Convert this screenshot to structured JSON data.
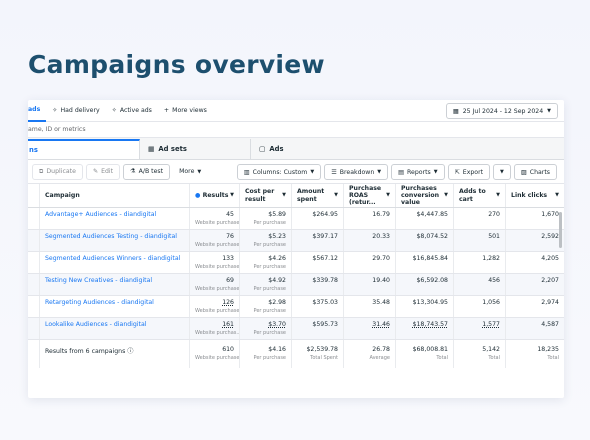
{
  "page": {
    "title": "Campaigns overview"
  },
  "filters": {
    "chips": [
      {
        "label": "ads",
        "active": true
      },
      {
        "label": "Had delivery",
        "active": false
      },
      {
        "label": "Active ads",
        "active": false
      },
      {
        "label": "More views",
        "active": false
      }
    ],
    "date_range": "25 Jul 2024 - 12 Sep 2024"
  },
  "search": {
    "placeholder": "ame, ID or metrics"
  },
  "tabs": [
    {
      "label": "ns"
    },
    {
      "label": "Ad sets"
    },
    {
      "label": "Ads"
    }
  ],
  "toolbar": {
    "duplicate": "Duplicate",
    "edit": "Edit",
    "ab_test": "A/B test",
    "more": "More",
    "columns": "Columns: Custom",
    "breakdown": "Breakdown",
    "reports": "Reports",
    "export": "Export",
    "charts": "Charts"
  },
  "table": {
    "headers": {
      "campaign": "Campaign",
      "results": "Results",
      "cost_per_result": "Cost per result",
      "amount_spent": "Amount spent",
      "roas": "Purchase ROAS (retur...",
      "conv_value": "Purchases conversion value",
      "adds_to_cart": "Adds to cart",
      "link_clicks": "Link clicks"
    },
    "rows": [
      {
        "campaign": "Advantage+ Audiences - diandigital",
        "results": "45",
        "results_sub": "Website purchases",
        "cpr": "$5.89",
        "cpr_sub": "Per purchase",
        "spent": "$264.95",
        "roas": "16.79",
        "conv": "$4,447.85",
        "atc": "270",
        "clicks": "1,670"
      },
      {
        "campaign": "Segmented Audiences Testing - diandigital",
        "results": "76",
        "results_sub": "Website purchases",
        "cpr": "$5.23",
        "cpr_sub": "Per purchase",
        "spent": "$397.17",
        "roas": "20.33",
        "conv": "$8,074.52",
        "atc": "501",
        "clicks": "2,592"
      },
      {
        "campaign": "Segmented Audiences Winners - diandigital",
        "results": "133",
        "results_sub": "Website purchases",
        "cpr": "$4.26",
        "cpr_sub": "Per purchase",
        "spent": "$567.12",
        "roas": "29.70",
        "conv": "$16,845.84",
        "atc": "1,282",
        "clicks": "4,205"
      },
      {
        "campaign": "Testing New Creatives - diandigital",
        "results": "69",
        "results_sub": "Website purchases",
        "cpr": "$4.92",
        "cpr_sub": "Per purchase",
        "spent": "$339.78",
        "roas": "19.40",
        "conv": "$6,592.08",
        "atc": "456",
        "clicks": "2,207"
      },
      {
        "campaign": "Retargeting Audiences - diandigital",
        "results": "126",
        "results_sub": "Website purchases",
        "cpr": "$2.98",
        "cpr_sub": "Per purchase",
        "spent": "$375.03",
        "roas": "35.48",
        "conv": "$13,304.95",
        "atc": "1,056",
        "clicks": "2,974"
      },
      {
        "campaign": "Lookalike Audiences - diandigital",
        "results": "161",
        "results_sub": "Website purchas...",
        "cpr": "$3.70",
        "cpr_sub": "Per purchase",
        "spent": "$595.73",
        "roas": "31.46",
        "conv": "$18,743.57",
        "atc": "1,577",
        "clicks": "4,587"
      }
    ],
    "footer": {
      "label": "Results from 6 campaigns",
      "results": "610",
      "results_sub": "Website purchases",
      "cpr": "$4.16",
      "cpr_sub": "Per purchase",
      "spent": "$2,539.78",
      "spent_sub": "Total Spent",
      "roas": "26.78",
      "roas_sub": "Average",
      "conv": "$68,008.81",
      "conv_sub": "Total",
      "atc": "5,142",
      "atc_sub": "Total",
      "clicks": "18,235",
      "clicks_sub": "Total"
    }
  },
  "colors": {
    "title": "#1d4f6e",
    "link": "#1877f2",
    "accent": "#1877f2"
  }
}
